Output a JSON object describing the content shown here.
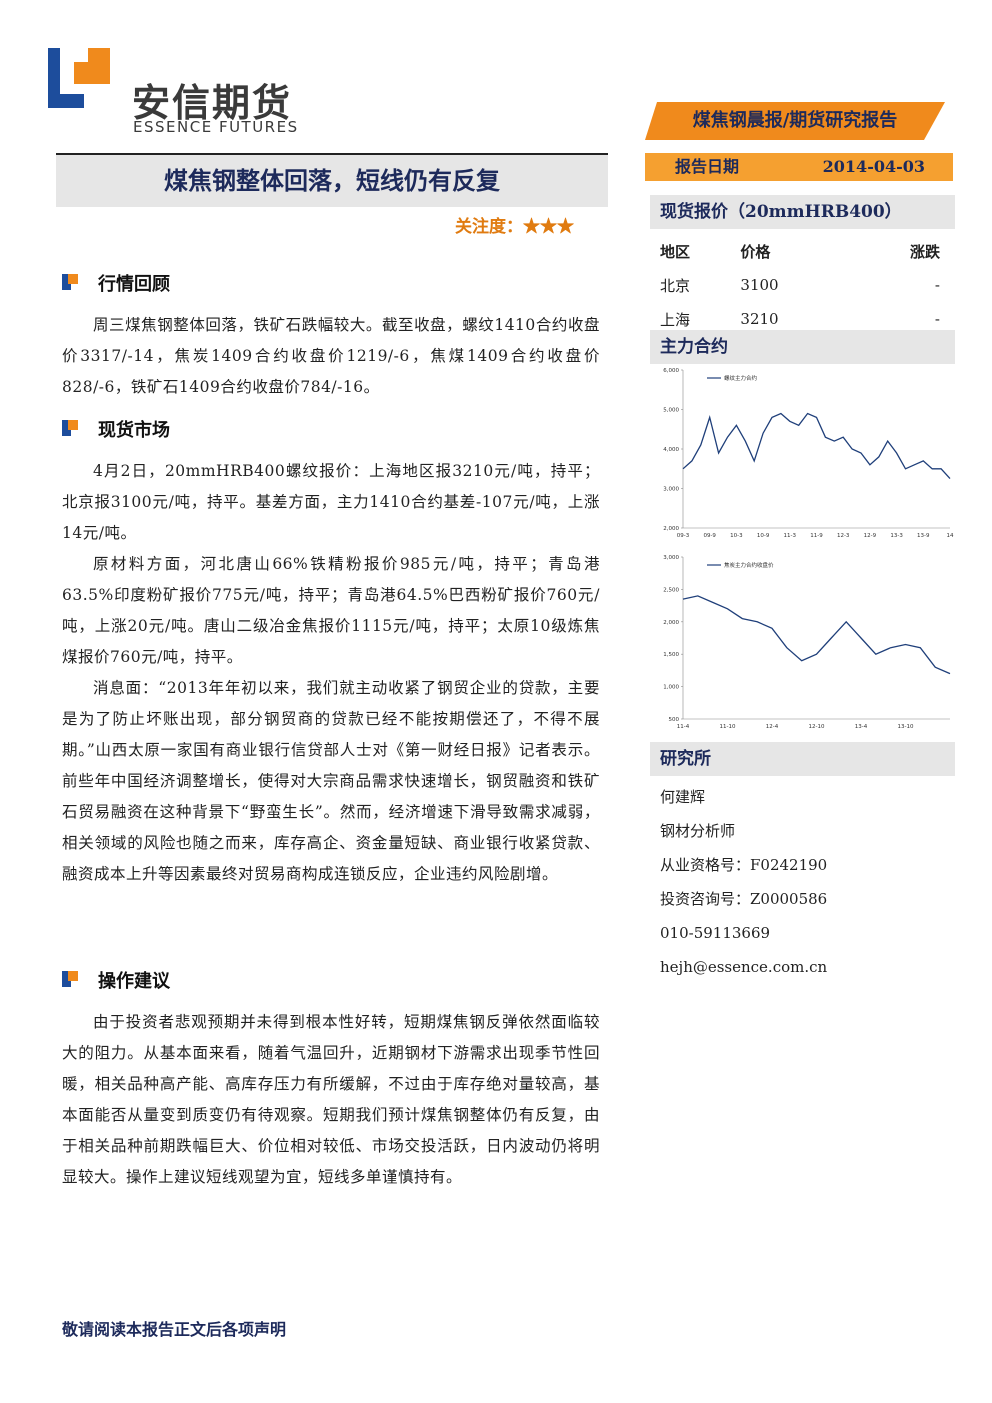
{
  "header": {
    "logo_cn": "安信期货",
    "logo_en": "ESSENCE FUTURES",
    "report_type": "煤焦钢晨报/期货研究报告",
    "date_label": "报告日期",
    "date": "2014-04-03"
  },
  "title": "煤焦钢整体回落，短线仍有反复",
  "attention": "关注度：★★★",
  "sections": [
    {
      "heading": "行情回顾",
      "paragraphs": [
        "周三煤焦钢整体回落，铁矿石跌幅较大。截至收盘，螺纹1410合约收盘价3317/-14，焦炭1409合约收盘价1219/-6，焦煤1409合约收盘价828/-6，铁矿石1409合约收盘价784/-16。"
      ]
    },
    {
      "heading": "现货市场",
      "paragraphs": [
        "4月2日，20mmHRB400螺纹报价：上海地区报3210元/吨，持平；北京报3100元/吨，持平。基差方面，主力1410合约基差-107元/吨，上涨14元/吨。",
        "原材料方面，河北唐山66%铁精粉报价985元/吨，持平；青岛港63.5%印度粉矿报价775元/吨，持平；青岛港64.5%巴西粉矿报价760元/吨，上涨20元/吨。唐山二级冶金焦报价1115元/吨，持平；太原10级炼焦煤报价760元/吨，持平。",
        "消息面：“2013年年初以来，我们就主动收紧了钢贸企业的贷款，主要是为了防止坏账出现，部分钢贸商的贷款已经不能按期偿还了，不得不展期。”山西太原一家国有商业银行信贷部人士对《第一财经日报》记者表示。前些年中国经济调整增长，使得对大宗商品需求快速增长，钢贸融资和铁矿石贸易融资在这种背景下“野蛮生长”。然而，经济增速下滑导致需求减弱，相关领域的风险也随之而来，库存高企、资金量短缺、商业银行收紧贷款、融资成本上升等因素最终对贸易商构成连锁反应，企业违约风险剧增。"
      ]
    },
    {
      "heading": "操作建议",
      "paragraphs": [
        "由于投资者悲观预期并未得到根本性好转，短期煤焦钢反弹依然面临较大的阻力。从基本面来看，随着气温回升，近期钢材下游需求出现季节性回暖，相关品种高产能、高库存压力有所缓解，不过由于库存绝对量较高，基本面能否从量变到质变仍有待观察。短期我们预计煤焦钢整体仍有反复，由于相关品种前期跌幅巨大、价位相对较低、市场交投活跃，日内波动仍将明显较大。操作上建议短线观望为宜，短线多单谨慎持有。"
      ]
    }
  ],
  "spot": {
    "heading": "现货报价（20mmHRB400）",
    "columns": [
      "地区",
      "价格",
      "涨跌"
    ],
    "rows": [
      [
        "北京",
        "3100",
        "-"
      ],
      [
        "上海",
        "3210",
        "-"
      ]
    ]
  },
  "contracts_heading": "主力合约",
  "charts": [
    {
      "type": "line",
      "categories": [
        "09-3",
        null,
        null,
        "09-9",
        null,
        null,
        "10-3",
        null,
        null,
        "10-9",
        null,
        null,
        "11-3",
        null,
        null,
        "11-9",
        null,
        null,
        "12-3",
        null,
        null,
        "12-9",
        null,
        null,
        "13-3",
        null,
        null,
        "13-9",
        null,
        null,
        "14"
      ],
      "series": [
        {
          "name": "螺纹主力合约",
          "color": "#1f3f7a",
          "values": [
            3500,
            3700,
            4100,
            4800,
            3900,
            4300,
            4600,
            4200,
            3700,
            4400,
            4800,
            4900,
            4700,
            4600,
            4900,
            4800,
            4300,
            4200,
            4300,
            4000,
            3900,
            3600,
            3800,
            4200,
            3900,
            3500,
            3600,
            3700,
            3500,
            3500,
            3250
          ]
        }
      ],
      "ylim": [
        2000,
        6000
      ],
      "yticks": [
        {
          "value": 2000,
          "label": "2,000"
        },
        {
          "value": 3000,
          "label": "3,000"
        },
        {
          "value": 4000,
          "label": "4,000"
        },
        {
          "value": 5000,
          "label": "5,000"
        },
        {
          "value": 6000,
          "label": "6,000"
        }
      ]
    },
    {
      "type": "line",
      "categories": [
        "11-4",
        null,
        null,
        "11-10",
        null,
        null,
        "12-4",
        null,
        null,
        "12-10",
        null,
        null,
        "13-4",
        null,
        null,
        "13-10",
        null,
        null,
        null
      ],
      "series": [
        {
          "name": "焦炭主力合约收盘价",
          "color": "#1f3f7a",
          "values": [
            2350,
            2400,
            2300,
            2200,
            2050,
            2000,
            1900,
            1600,
            1400,
            1500,
            1750,
            2000,
            1750,
            1500,
            1600,
            1650,
            1600,
            1300,
            1200
          ]
        }
      ],
      "ylim": [
        500,
        3000
      ],
      "yticks": [
        500,
        {
          "value": 1000,
          "label": "1,000"
        },
        {
          "value": 1500,
          "label": "1,500"
        },
        {
          "value": 2000,
          "label": "2,000"
        },
        {
          "value": 2500,
          "label": "2,500"
        },
        {
          "value": 3000,
          "label": "3,000"
        }
      ]
    }
  ],
  "research": {
    "heading": "研究所",
    "lines": [
      "何建辉",
      "钢材分析师",
      "从业资格号：F0242190",
      "投资咨询号：Z0000586",
      "010-59113669",
      "hejh@essence.com.cn"
    ]
  },
  "footer": "敬请阅读本报告正文后各项声明"
}
